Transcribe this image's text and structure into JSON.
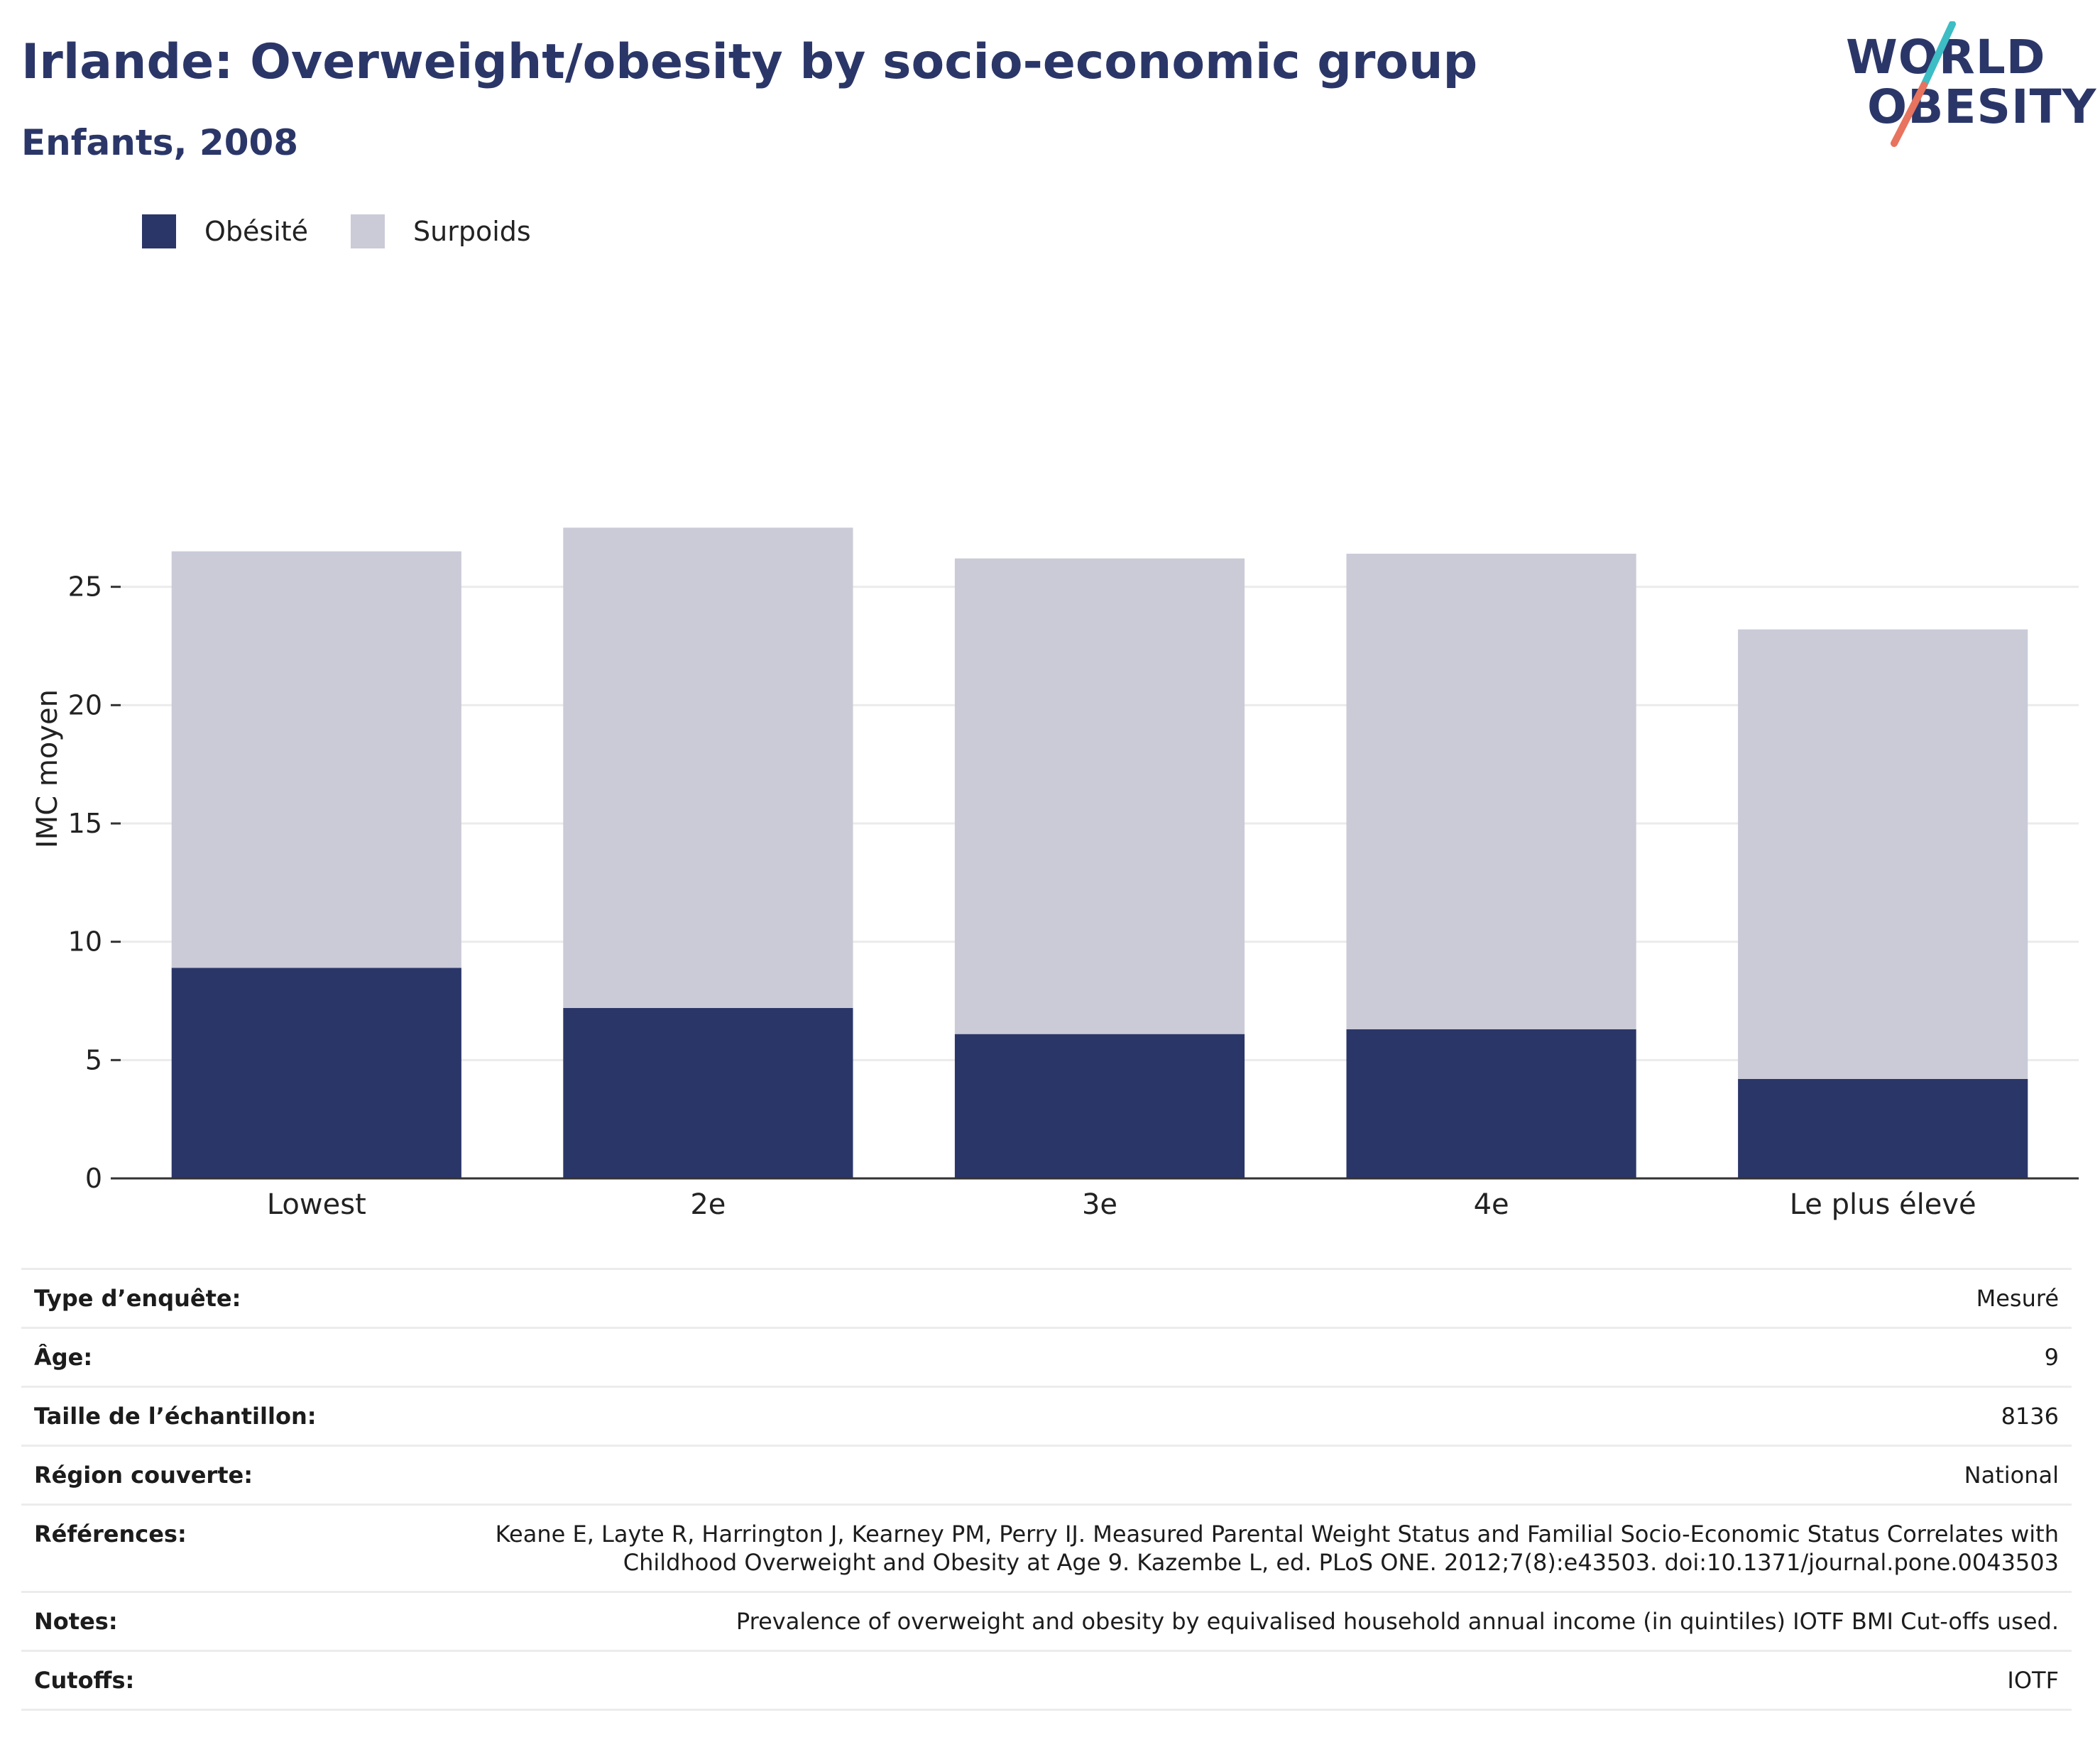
{
  "header": {
    "title": "Irlande: Overweight/obesity by socio-economic group",
    "subtitle": "Enfants, 2008"
  },
  "logo": {
    "line1": "WORLD",
    "line2": "OBESITY",
    "colors": {
      "text": "#2b3668",
      "slash_top": "#3dbdc4",
      "slash_bottom": "#e8735e"
    }
  },
  "chart_data": {
    "type": "bar",
    "stacked": true,
    "categories": [
      "Lowest",
      "2e",
      "3e",
      "4e",
      "Le plus élevé"
    ],
    "series": [
      {
        "name": "Obésité",
        "color": "#2b3668",
        "values": [
          8.9,
          7.2,
          6.1,
          6.3,
          4.2
        ]
      },
      {
        "name": "Surpoids",
        "color": "#cacbd7",
        "values": [
          17.6,
          20.3,
          20.1,
          20.1,
          19.0
        ]
      }
    ],
    "ylabel": "IMC moyen",
    "xlabel": "",
    "ylim": [
      0,
      30
    ],
    "yticks": [
      0,
      5,
      10,
      15,
      20,
      25
    ],
    "grid": true,
    "legend_position": "top-left"
  },
  "info": [
    {
      "label": "Type d’enquête:",
      "value": "Mesuré"
    },
    {
      "label": "Âge:",
      "value": "9"
    },
    {
      "label": "Taille de l’échantillon:",
      "value": "8136"
    },
    {
      "label": "Région couverte:",
      "value": "National"
    },
    {
      "label": "Références:",
      "value": "Keane E, Layte R, Harrington J, Kearney PM, Perry IJ. Measured Parental Weight Status and Familial Socio-Economic Status Correlates with Childhood Overweight and Obesity at Age 9. Kazembe L, ed. PLoS ONE. 2012;7(8):e43503. doi:10.1371/journal.pone.0043503"
    },
    {
      "label": "Notes:",
      "value": "Prevalence of overweight and obesity by equivalised household annual income (in quintiles) IOTF BMI Cut-offs used."
    },
    {
      "label": "Cutoffs:",
      "value": "IOTF"
    }
  ]
}
